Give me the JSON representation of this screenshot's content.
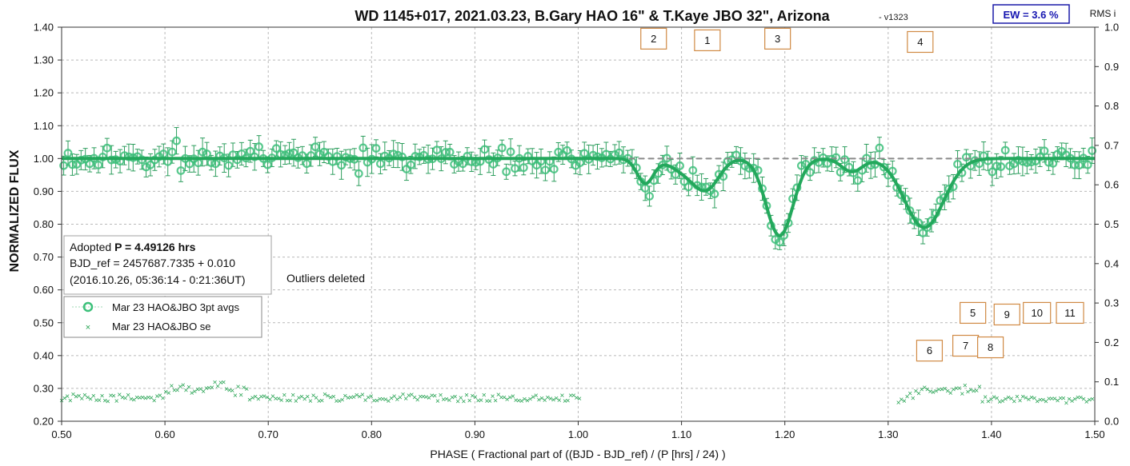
{
  "chart_data": {
    "type": "scatter",
    "title": "WD 1145+017, 2021.03.23, B.Gary HAO 16\" & T.Kaye JBO 32\", Arizona",
    "title_suffix": "- v1323",
    "ew_label": "EW = 3.6 %",
    "right_axis_label": "RMS i",
    "xlabel": "PHASE ( Fractional part of ((BJD - BJD_ref) / (P [hrs] / 24) )",
    "ylabel": "NORMALIZED FLUX",
    "xlim": [
      0.5,
      1.5
    ],
    "ylim": [
      0.2,
      1.4
    ],
    "y2lim": [
      0.0,
      1.0
    ],
    "grid": true,
    "x_ticks": [
      "0.50",
      "0.60",
      "0.70",
      "0.80",
      "0.90",
      "1.00",
      "1.10",
      "1.20",
      "1.30",
      "1.40",
      "1.50"
    ],
    "y_ticks": [
      "0.20",
      "0.30",
      "0.40",
      "0.50",
      "0.60",
      "0.70",
      "0.80",
      "0.90",
      "1.00",
      "1.10",
      "1.20",
      "1.30",
      "1.40"
    ],
    "y2_ticks": [
      "0.0",
      "0.1",
      "0.2",
      "0.3",
      "0.4",
      "0.5",
      "0.6",
      "0.7",
      "0.8",
      "0.9",
      "1.0"
    ],
    "info_box": {
      "line1_prefix": "Adopted ",
      "line1_bold": "P = 4.49126 hrs",
      "line2": "BJD_ref = 2457687.7335 + 0.010",
      "line3": "(2016.10.26, 05:36:14 - 0:21:36UT)"
    },
    "outliers_note": "Outliers deleted",
    "legend": {
      "position": "middle-left",
      "entries": [
        "Mar 23 HAO&JBO 3pt avgs",
        "Mar 23 HAO&JBO se"
      ]
    },
    "baseline": 1.0,
    "model_dips": [
      {
        "x": 1.065,
        "depth": 0.075,
        "width": 0.008
      },
      {
        "x": 1.125,
        "depth": 0.08,
        "width": 0.012
      },
      {
        "x": 1.195,
        "depth": 0.235,
        "width": 0.013
      },
      {
        "x": 1.265,
        "depth": 0.04,
        "width": 0.01
      },
      {
        "x": 1.335,
        "depth": 0.21,
        "width": 0.019
      },
      {
        "x": 1.105,
        "depth": 0.04,
        "width": 0.015
      }
    ],
    "dip_markers": [
      {
        "label": "2",
        "x": 1.073,
        "y": 1.365
      },
      {
        "label": "1",
        "x": 1.125,
        "y": 1.36
      },
      {
        "label": "3",
        "x": 1.193,
        "y": 1.365
      },
      {
        "label": "4",
        "x": 1.331,
        "y": 1.355
      },
      {
        "label": "5",
        "x": 1.382,
        "y": 0.53
      },
      {
        "label": "9",
        "x": 1.415,
        "y": 0.525
      },
      {
        "label": "10",
        "x": 1.444,
        "y": 0.53
      },
      {
        "label": "11",
        "x": 1.476,
        "y": 0.53
      },
      {
        "label": "6",
        "x": 1.34,
        "y": 0.415
      },
      {
        "label": "7",
        "x": 1.375,
        "y": 0.43
      },
      {
        "label": "8",
        "x": 1.399,
        "y": 0.425
      }
    ],
    "rms_segments": [
      {
        "x_start": 0.5,
        "x_end": 1.003,
        "base": 0.06
      },
      {
        "x_start": 1.31,
        "x_end": 1.5,
        "base": 0.055
      }
    ],
    "series": [
      {
        "name": "Mar 23 HAO&JBO 3pt avgs",
        "note": "flux points with error bars"
      },
      {
        "name": "Mar 23 HAO&JBO se",
        "note": "plotted on right axis"
      }
    ],
    "colors": {
      "points": "#3cc07a",
      "model": "#23a85c",
      "error_bars": "#2e9e5e",
      "rms": "#22a14f",
      "baseline_dash": "#8a8a8a",
      "marker_border": "#d08a44",
      "ew_border": "#1a1aa8",
      "ew_text": "#1515b0"
    }
  }
}
